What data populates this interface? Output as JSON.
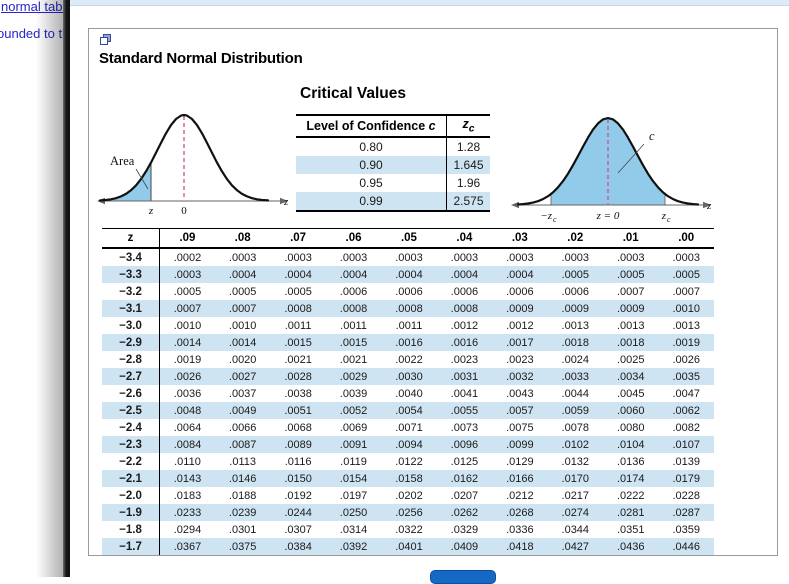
{
  "background": {
    "link_text": "normal table",
    "partial_text": "ounded to th"
  },
  "dialog": {
    "title": "Standard Normal Distribution",
    "critical_values": {
      "heading": "Critical Values",
      "col1_header": "Level of Confidence ",
      "col1_header_var": "c",
      "col2_header_base": "z",
      "col2_header_sub": "c",
      "rows": [
        {
          "confidence": "0.80",
          "zc": "1.28"
        },
        {
          "confidence": "0.90",
          "zc": "1.645"
        },
        {
          "confidence": "0.95",
          "zc": "1.96"
        },
        {
          "confidence": "0.99",
          "zc": "2.575"
        }
      ]
    },
    "left_figure": {
      "area_label": "Area",
      "tick_z": "z",
      "tick_zero": "0",
      "axis_label": "z"
    },
    "right_figure": {
      "c_label": "c",
      "tick_neg_base": "−z",
      "tick_neg_sub": "c",
      "tick_center": "z = 0",
      "tick_pos_base": "z",
      "tick_pos_sub": "c",
      "axis_label": "z"
    },
    "z_table": {
      "columns": [
        "z",
        ".09",
        ".08",
        ".07",
        ".06",
        ".05",
        ".04",
        ".03",
        ".02",
        ".01",
        ".00"
      ],
      "rows": [
        {
          "z": "−3.4",
          "values": [
            ".0002",
            ".0003",
            ".0003",
            ".0003",
            ".0003",
            ".0003",
            ".0003",
            ".0003",
            ".0003",
            ".0003"
          ]
        },
        {
          "z": "−3.3",
          "values": [
            ".0003",
            ".0004",
            ".0004",
            ".0004",
            ".0004",
            ".0004",
            ".0004",
            ".0005",
            ".0005",
            ".0005"
          ]
        },
        {
          "z": "−3.2",
          "values": [
            ".0005",
            ".0005",
            ".0005",
            ".0006",
            ".0006",
            ".0006",
            ".0006",
            ".0006",
            ".0007",
            ".0007"
          ]
        },
        {
          "z": "−3.1",
          "values": [
            ".0007",
            ".0007",
            ".0008",
            ".0008",
            ".0008",
            ".0008",
            ".0009",
            ".0009",
            ".0009",
            ".0010"
          ]
        },
        {
          "z": "−3.0",
          "values": [
            ".0010",
            ".0010",
            ".0011",
            ".0011",
            ".0011",
            ".0012",
            ".0012",
            ".0013",
            ".0013",
            ".0013"
          ]
        },
        {
          "z": "−2.9",
          "values": [
            ".0014",
            ".0014",
            ".0015",
            ".0015",
            ".0016",
            ".0016",
            ".0017",
            ".0018",
            ".0018",
            ".0019"
          ]
        },
        {
          "z": "−2.8",
          "values": [
            ".0019",
            ".0020",
            ".0021",
            ".0021",
            ".0022",
            ".0023",
            ".0023",
            ".0024",
            ".0025",
            ".0026"
          ]
        },
        {
          "z": "−2.7",
          "values": [
            ".0026",
            ".0027",
            ".0028",
            ".0029",
            ".0030",
            ".0031",
            ".0032",
            ".0033",
            ".0034",
            ".0035"
          ]
        },
        {
          "z": "−2.6",
          "values": [
            ".0036",
            ".0037",
            ".0038",
            ".0039",
            ".0040",
            ".0041",
            ".0043",
            ".0044",
            ".0045",
            ".0047"
          ]
        },
        {
          "z": "−2.5",
          "values": [
            ".0048",
            ".0049",
            ".0051",
            ".0052",
            ".0054",
            ".0055",
            ".0057",
            ".0059",
            ".0060",
            ".0062"
          ]
        },
        {
          "z": "−2.4",
          "values": [
            ".0064",
            ".0066",
            ".0068",
            ".0069",
            ".0071",
            ".0073",
            ".0075",
            ".0078",
            ".0080",
            ".0082"
          ]
        },
        {
          "z": "−2.3",
          "values": [
            ".0084",
            ".0087",
            ".0089",
            ".0091",
            ".0094",
            ".0096",
            ".0099",
            ".0102",
            ".0104",
            ".0107"
          ]
        },
        {
          "z": "−2.2",
          "values": [
            ".0110",
            ".0113",
            ".0116",
            ".0119",
            ".0122",
            ".0125",
            ".0129",
            ".0132",
            ".0136",
            ".0139"
          ]
        },
        {
          "z": "−2.1",
          "values": [
            ".0143",
            ".0146",
            ".0150",
            ".0154",
            ".0158",
            ".0162",
            ".0166",
            ".0170",
            ".0174",
            ".0179"
          ]
        },
        {
          "z": "−2.0",
          "values": [
            ".0183",
            ".0188",
            ".0192",
            ".0197",
            ".0202",
            ".0207",
            ".0212",
            ".0217",
            ".0222",
            ".0228"
          ]
        },
        {
          "z": "−1.9",
          "values": [
            ".0233",
            ".0239",
            ".0244",
            ".0250",
            ".0256",
            ".0262",
            ".0268",
            ".0274",
            ".0281",
            ".0287"
          ]
        },
        {
          "z": "−1.8",
          "values": [
            ".0294",
            ".0301",
            ".0307",
            ".0314",
            ".0322",
            ".0329",
            ".0336",
            ".0344",
            ".0351",
            ".0359"
          ]
        },
        {
          "z": "−1.7",
          "values": [
            ".0367",
            ".0375",
            ".0384",
            ".0392",
            ".0401",
            ".0409",
            ".0418",
            ".0427",
            ".0436",
            ".0446"
          ]
        }
      ]
    }
  },
  "colors": {
    "row_stripe": "#cfe4f2",
    "curve_fill": "#92cbe9",
    "center_dash_line": "#d04f92",
    "bottom_button": "#1569c4",
    "link_blue": "#2626c9"
  }
}
